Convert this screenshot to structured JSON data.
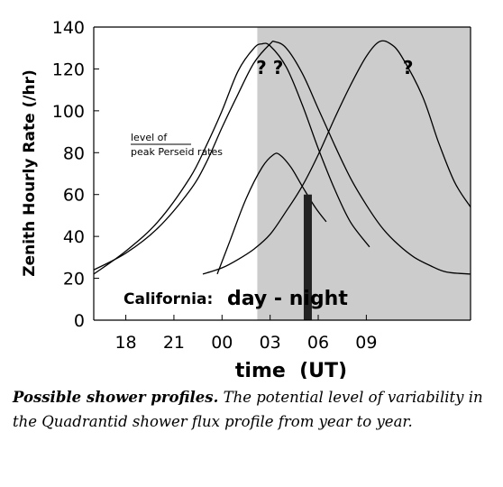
{
  "chart_data": {
    "type": "line",
    "xlabel": "time  (UT)",
    "ylabel": "Zenith Hourly Rate (/hr)",
    "xlim": [
      16,
      39.5
    ],
    "ylim": [
      0,
      140
    ],
    "x_tick_values": [
      18,
      21,
      24,
      27,
      30,
      33
    ],
    "x_tick_labels": [
      "18",
      "21",
      "00",
      "03",
      "06",
      "09"
    ],
    "y_ticks": [
      0,
      20,
      40,
      60,
      80,
      100,
      120,
      140
    ],
    "grid": false,
    "legend": "none",
    "night_shading": {
      "x_start": 26.2,
      "x_end": 39.5,
      "color": "#cccccc"
    },
    "series": [
      {
        "curve": "A",
        "x": [
          16,
          18,
          20,
          22,
          23,
          24,
          25,
          26,
          26.5,
          27,
          28,
          29,
          30,
          31,
          32,
          33.2
        ],
        "y": [
          22,
          33,
          47,
          68,
          83,
          100,
          119,
          130,
          132,
          131,
          121,
          103,
          82,
          63,
          47,
          35
        ]
      },
      {
        "curve": "B",
        "x": [
          16,
          18,
          20,
          22,
          23,
          24,
          25,
          26,
          27,
          27.3,
          28,
          29,
          30,
          31,
          32,
          33,
          34,
          35,
          36,
          37,
          38,
          39.5
        ],
        "y": [
          24,
          32,
          44,
          62,
          75,
          92,
          108,
          123,
          132,
          133,
          130,
          118,
          101,
          84,
          68,
          55,
          44,
          36,
          30,
          26,
          23,
          22
        ]
      },
      {
        "curve": "C",
        "x": [
          23.7,
          24.5,
          25.5,
          26.5,
          27.2,
          27.6,
          28.3,
          29,
          29.8,
          30.5
        ],
        "y": [
          22,
          38,
          58,
          73,
          79,
          79,
          73,
          64,
          54,
          47
        ]
      },
      {
        "curve": "D",
        "x": [
          22.8,
          24,
          25,
          26,
          27,
          28,
          29,
          30,
          31,
          32,
          33,
          33.8,
          34.5,
          35.2,
          36.5,
          37.5,
          38.5,
          39.5
        ],
        "y": [
          22,
          25,
          29,
          34,
          41,
          52,
          64,
          79,
          96,
          112,
          126,
          133,
          132,
          126,
          107,
          85,
          66,
          54
        ]
      }
    ],
    "peak_marker": {
      "x": 29.35,
      "y_top": 60,
      "y_bottom": 0,
      "color": "#222222"
    },
    "reference_label": {
      "line1": "level of",
      "line2": "peak Perseid rates",
      "value": 84
    },
    "question_marks": [
      {
        "text": "?",
        "x": 26.45,
        "y": 121
      },
      {
        "text": "?",
        "x": 27.5,
        "y": 121
      },
      {
        "text": "?",
        "x": 35.6,
        "y": 121
      }
    ],
    "annotations": {
      "location": "California:",
      "day_night": "day - night"
    }
  },
  "caption": {
    "bold_part": "Possible shower profiles.",
    "rest": "The potential level of variability in the Quadrantid shower flux profile from year to year."
  }
}
